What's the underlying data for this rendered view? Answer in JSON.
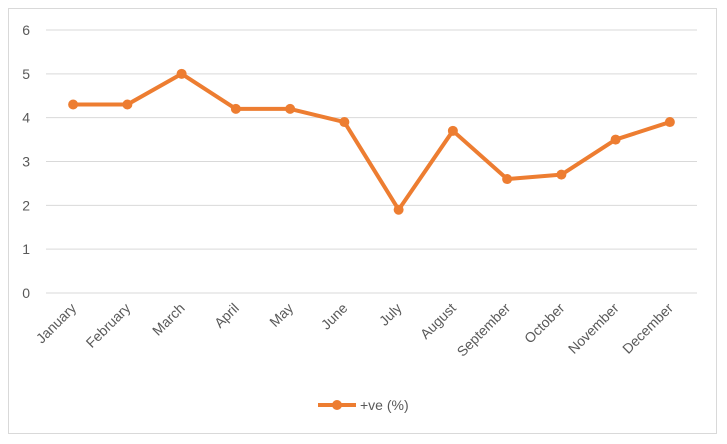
{
  "chart_data": {
    "type": "line",
    "title": "",
    "xlabel": "",
    "ylabel": "",
    "categories": [
      "January",
      "February",
      "March",
      "April",
      "May",
      "June",
      "July",
      "August",
      "September",
      "October",
      "November",
      "December"
    ],
    "series": [
      {
        "name": "+ve (%)",
        "values": [
          4.3,
          4.3,
          5.0,
          4.2,
          4.2,
          3.9,
          1.9,
          3.7,
          2.6,
          2.7,
          3.5,
          3.9
        ],
        "color": "#ED7D31"
      }
    ],
    "ylim": [
      0,
      6
    ],
    "yticks": [
      "0",
      "1",
      "2",
      "3",
      "4",
      "5",
      "6"
    ],
    "grid": true,
    "legend": "bottom",
    "colors": {
      "grid": "#d9d9d9",
      "text": "#595959",
      "frame": "#d9d9d9"
    }
  }
}
